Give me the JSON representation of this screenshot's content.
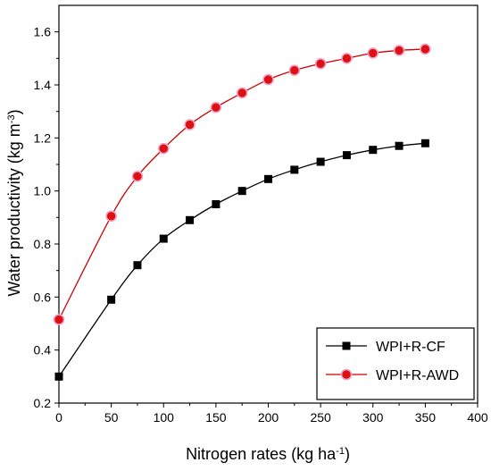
{
  "chart_data": {
    "type": "line",
    "title": "",
    "xlabel_main": "Nitrogen rates (kg ha",
    "xlabel_sup": "-1",
    "xlabel_end": ")",
    "ylabel_main": "Water productivity (kg m",
    "ylabel_sup": "-3",
    "ylabel_end": ")",
    "xlim": [
      0,
      400
    ],
    "ylim": [
      0.2,
      1.7
    ],
    "x_ticks": [
      0,
      50,
      100,
      150,
      200,
      250,
      300,
      350,
      400
    ],
    "y_ticks": [
      0.2,
      0.4,
      0.6,
      0.8,
      1.0,
      1.2,
      1.4,
      1.6
    ],
    "x_tick_labels": [
      "0",
      "50",
      "100",
      "150",
      "200",
      "250",
      "300",
      "350",
      "400"
    ],
    "y_tick_labels": [
      "0.2",
      "0.4",
      "0.6",
      "0.8",
      "1.0",
      "1.2",
      "1.4",
      "1.6"
    ],
    "x": [
      0,
      50,
      75,
      100,
      125,
      150,
      175,
      200,
      225,
      250,
      275,
      300,
      325,
      350
    ],
    "series": [
      {
        "name": "WPI+R-CF",
        "color": "#000000",
        "marker": "square",
        "values": [
          0.3,
          0.59,
          0.72,
          0.82,
          0.89,
          0.95,
          1.0,
          1.045,
          1.08,
          1.11,
          1.135,
          1.155,
          1.17,
          1.18
        ]
      },
      {
        "name": "WPI+R-AWD",
        "color": "#cc0000",
        "marker": "circle",
        "values": [
          0.515,
          0.905,
          1.055,
          1.16,
          1.25,
          1.315,
          1.37,
          1.42,
          1.455,
          1.48,
          1.5,
          1.52,
          1.53,
          1.535
        ]
      }
    ],
    "legend_position": "bottom-right",
    "grid": false
  }
}
